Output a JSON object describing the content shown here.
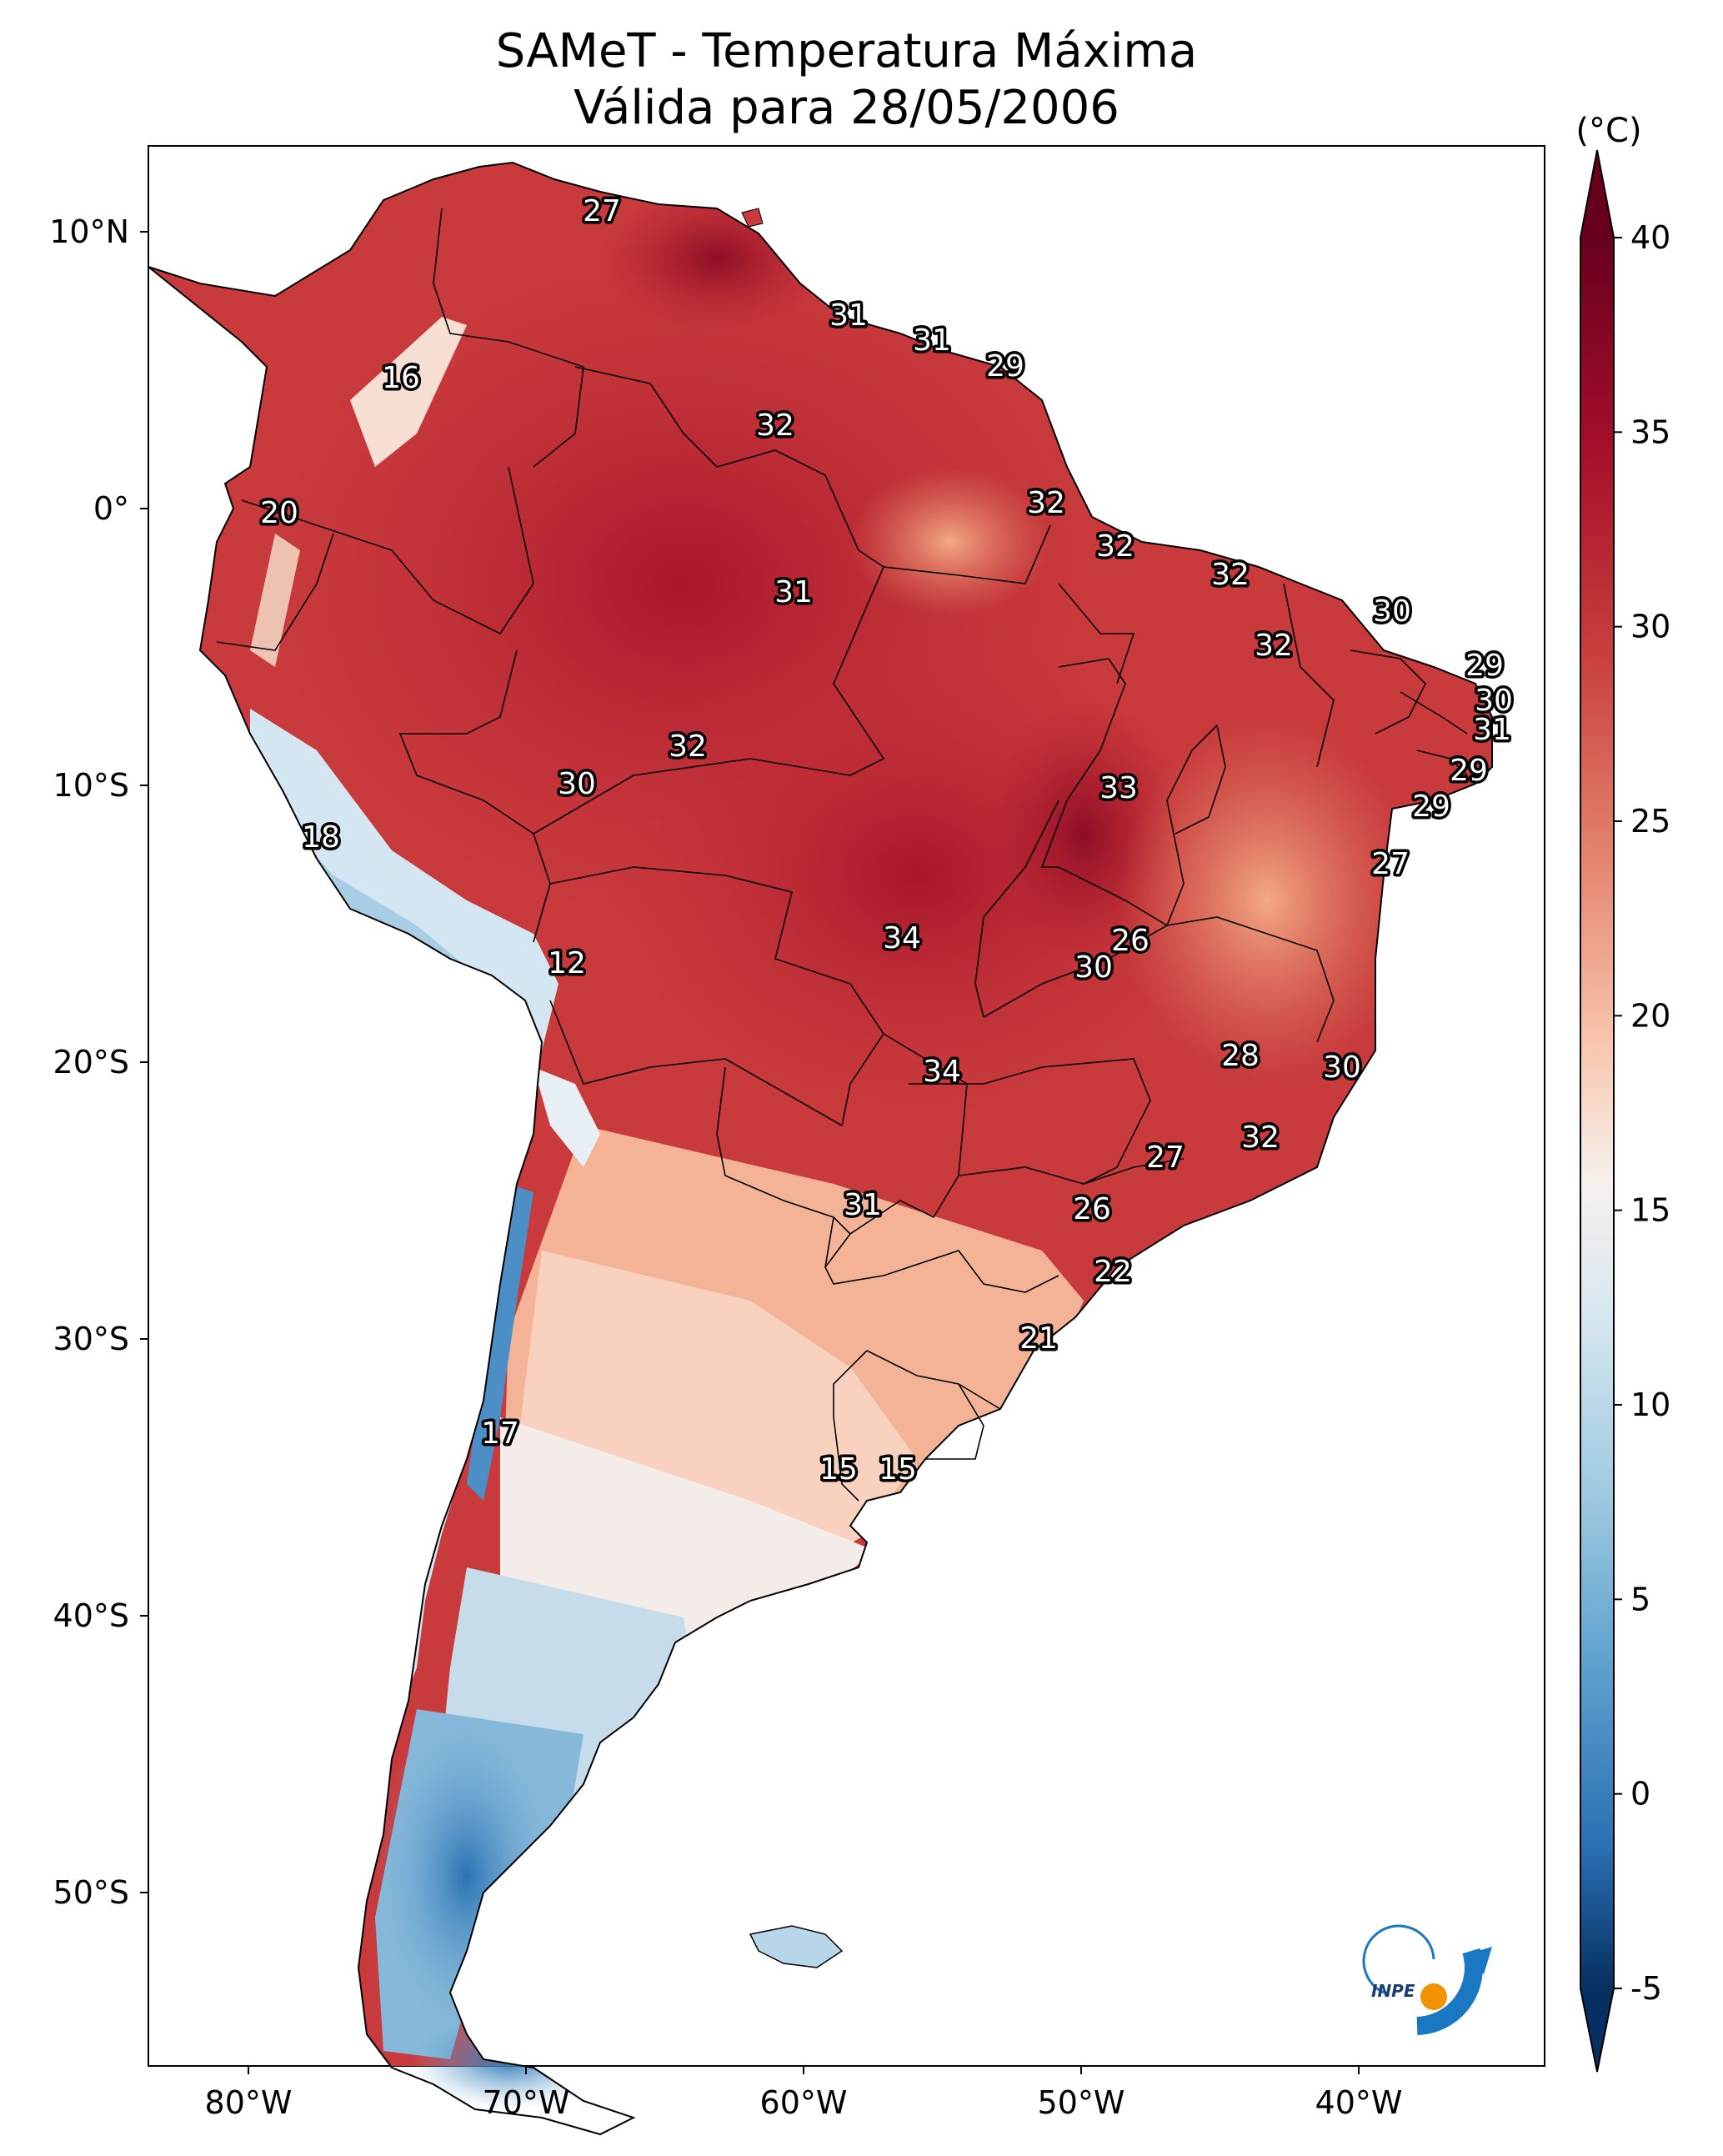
{
  "title": {
    "line1": "SAMeT - Temperatura Máxima",
    "line2": "Válida para 28/05/2006"
  },
  "colorbar": {
    "unit": "(°C)",
    "ticks": [
      "40",
      "35",
      "30",
      "25",
      "20",
      "15",
      "10",
      "5",
      "0",
      "-5"
    ],
    "colors": [
      "#67001f",
      "#b2182b",
      "#d6604d",
      "#f4a582",
      "#fddbc7",
      "#f7f7f7",
      "#d1e5f0",
      "#92c5de",
      "#4393c3",
      "#2166ac",
      "#053061"
    ]
  },
  "axes": {
    "lat_labels": [
      "10°N",
      "0°",
      "10°S",
      "20°S",
      "30°S",
      "40°S",
      "50°S"
    ],
    "lon_labels": [
      "80°W",
      "70°W",
      "60°W",
      "50°W",
      "40°W"
    ]
  },
  "temperature_labels": [
    {
      "text": "27"
    },
    {
      "text": "31"
    },
    {
      "text": "31"
    },
    {
      "text": "29"
    },
    {
      "text": "16"
    },
    {
      "text": "32"
    },
    {
      "text": "20"
    },
    {
      "text": "32"
    },
    {
      "text": "31"
    },
    {
      "text": "32"
    },
    {
      "text": "32"
    },
    {
      "text": "30"
    },
    {
      "text": "32"
    },
    {
      "text": "29"
    },
    {
      "text": "30"
    },
    {
      "text": "31"
    },
    {
      "text": "32"
    },
    {
      "text": "30"
    },
    {
      "text": "33"
    },
    {
      "text": "29"
    },
    {
      "text": "29"
    },
    {
      "text": "18"
    },
    {
      "text": "27"
    },
    {
      "text": "26"
    },
    {
      "text": "34"
    },
    {
      "text": "12"
    },
    {
      "text": "30"
    },
    {
      "text": "28"
    },
    {
      "text": "34"
    },
    {
      "text": "30"
    },
    {
      "text": "32"
    },
    {
      "text": "27"
    },
    {
      "text": "31"
    },
    {
      "text": "26"
    },
    {
      "text": "22"
    },
    {
      "text": "21"
    },
    {
      "text": "17"
    },
    {
      "text": "15"
    },
    {
      "text": "15"
    }
  ],
  "logo": {
    "text": "INPE"
  }
}
